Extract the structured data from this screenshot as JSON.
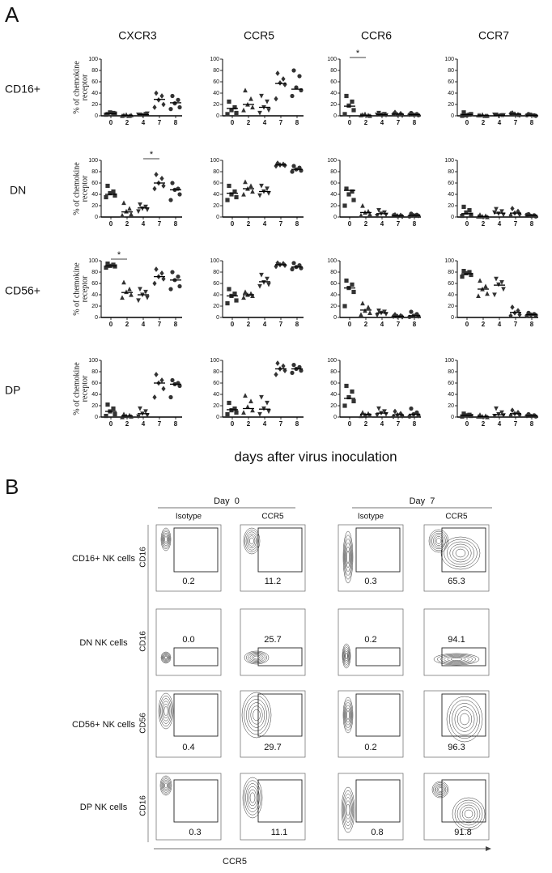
{
  "panel_a": {
    "label": "A",
    "columns": [
      "CXCR3",
      "CCR5",
      "CCR6",
      "CCR7"
    ],
    "rows": [
      "CD16+",
      "DN",
      "CD56+",
      "DP"
    ],
    "y_axis_label": [
      "% of chemokine",
      "receptor"
    ],
    "x_axis_label": "days after virus inoculation",
    "categories": [
      "0",
      "2",
      "4",
      "7",
      "8"
    ],
    "ylim": [
      0,
      100
    ],
    "yticks": [
      0,
      20,
      40,
      60,
      80,
      100
    ],
    "markers": [
      "square",
      "triangle",
      "triangle-down",
      "diamond",
      "circle"
    ],
    "color": "#333333",
    "plots": [
      [
        {
          "values": [
            [
              3,
              5,
              6,
              4,
              2
            ],
            [
              1,
              0,
              2,
              1,
              0
            ],
            [
              2,
              3,
              1,
              4,
              2
            ],
            [
              40,
              35,
              28,
              20,
              15
            ],
            [
              35,
              28,
              22,
              15,
              12
            ]
          ],
          "medians": [
            4,
            1,
            2,
            29,
            23
          ]
        },
        {
          "values": [
            [
              25,
              15,
              10,
              5,
              3
            ],
            [
              45,
              30,
              20,
              15,
              10
            ],
            [
              35,
              25,
              15,
              10,
              5
            ],
            [
              75,
              65,
              58,
              55,
              30
            ],
            [
              80,
              70,
              50,
              45,
              35
            ]
          ],
          "medians": [
            13,
            20,
            15,
            57,
            47
          ]
        },
        {
          "values": [
            [
              35,
              25,
              18,
              10,
              3
            ],
            [
              2,
              1,
              3,
              0,
              1
            ],
            [
              5,
              3,
              2,
              1,
              2
            ],
            [
              6,
              4,
              2,
              1,
              3
            ],
            [
              5,
              3,
              2,
              1,
              2
            ]
          ],
          "medians": [
            17,
            1,
            2,
            3,
            2
          ],
          "significance": {
            "from": "0",
            "to": "2",
            "label": "*"
          }
        },
        {
          "values": [
            [
              6,
              2,
              1,
              3,
              0
            ],
            [
              1,
              0,
              2,
              0,
              1
            ],
            [
              2,
              1,
              0,
              1,
              2
            ],
            [
              5,
              2,
              3,
              1,
              4
            ],
            [
              3,
              1,
              2,
              0,
              1
            ]
          ],
          "medians": [
            2,
            1,
            1,
            3,
            1
          ]
        }
      ],
      [
        {
          "values": [
            [
              55,
              45,
              42,
              38,
              35
            ],
            [
              25,
              15,
              10,
              5,
              3
            ],
            [
              22,
              18,
              15,
              13,
              10
            ],
            [
              75,
              68,
              60,
              55,
              50
            ],
            [
              60,
              50,
              48,
              40,
              30
            ]
          ],
          "medians": [
            40,
            9,
            16,
            60,
            48
          ],
          "significance": {
            "from": "4",
            "to": "7",
            "label": "*"
          }
        },
        {
          "values": [
            [
              55,
              45,
              40,
              35,
              30
            ],
            [
              62,
              55,
              50,
              45,
              40
            ],
            [
              55,
              50,
              45,
              42,
              38
            ],
            [
              95,
              93,
              92,
              91,
              90
            ],
            [
              90,
              87,
              84,
              82,
              80
            ]
          ],
          "medians": [
            42,
            50,
            45,
            92,
            84
          ]
        },
        {
          "values": [
            [
              50,
              45,
              40,
              30,
              20
            ],
            [
              20,
              10,
              8,
              5,
              3
            ],
            [
              12,
              8,
              6,
              4,
              2
            ],
            [
              4,
              3,
              2,
              1,
              3
            ],
            [
              6,
              4,
              3,
              2,
              1
            ]
          ],
          "medians": [
            47,
            8,
            6,
            2,
            3
          ]
        },
        {
          "values": [
            [
              18,
              12,
              8,
              4,
              2
            ],
            [
              4,
              2,
              1,
              0,
              1
            ],
            [
              14,
              10,
              6,
              4,
              8
            ],
            [
              15,
              10,
              7,
              5,
              3
            ],
            [
              5,
              3,
              2,
              1,
              4
            ]
          ],
          "medians": [
            6,
            1,
            7,
            7,
            3
          ]
        }
      ],
      [
        {
          "values": [
            [
              95,
              93,
              91,
              90,
              88
            ],
            [
              62,
              50,
              45,
              40,
              35
            ],
            [
              50,
              45,
              40,
              35,
              30
            ],
            [
              85,
              78,
              72,
              68,
              60
            ],
            [
              80,
              72,
              66,
              55,
              50
            ]
          ],
          "medians": [
            91,
            44,
            40,
            72,
            66
          ],
          "significance": {
            "from": "0",
            "to": "2",
            "label": "*"
          }
        },
        {
          "values": [
            [
              50,
              42,
              38,
              30,
              25
            ],
            [
              45,
              42,
              40,
              38,
              35
            ],
            [
              75,
              68,
              62,
              58,
              55
            ],
            [
              96,
              95,
              93,
              92,
              90
            ],
            [
              96,
              92,
              89,
              87,
              85
            ]
          ],
          "medians": [
            38,
            40,
            63,
            93,
            89
          ]
        },
        {
          "values": [
            [
              65,
              58,
              52,
              45,
              20
            ],
            [
              25,
              18,
              12,
              8,
              5
            ],
            [
              12,
              10,
              8,
              6,
              4
            ],
            [
              5,
              3,
              2,
              1,
              2
            ],
            [
              10,
              6,
              3,
              2,
              1
            ]
          ],
          "medians": [
            52,
            13,
            8,
            2,
            3
          ]
        },
        {
          "values": [
            [
              82,
              80,
              78,
              75,
              72
            ],
            [
              65,
              55,
              50,
              42,
              38
            ],
            [
              68,
              62,
              58,
              50,
              40
            ],
            [
              18,
              12,
              8,
              5,
              3
            ],
            [
              8,
              6,
              5,
              4,
              3
            ]
          ],
          "medians": [
            77,
            50,
            57,
            9,
            5
          ]
        }
      ],
      [
        {
          "values": [
            [
              22,
              15,
              10,
              5,
              2
            ],
            [
              5,
              3,
              2,
              1,
              0
            ],
            [
              15,
              10,
              6,
              3,
              1
            ],
            [
              75,
              65,
              60,
              50,
              35
            ],
            [
              65,
              60,
              58,
              55,
              35
            ]
          ],
          "medians": [
            10,
            2,
            6,
            60,
            58
          ]
        },
        {
          "values": [
            [
              25,
              15,
              12,
              8,
              5
            ],
            [
              38,
              28,
              18,
              12,
              8
            ],
            [
              35,
              25,
              15,
              10,
              5
            ],
            [
              95,
              90,
              85,
              82,
              75
            ],
            [
              92,
              88,
              85,
              82,
              78
            ]
          ],
          "medians": [
            13,
            15,
            14,
            85,
            85
          ]
        },
        {
          "values": [
            [
              55,
              45,
              35,
              28,
              20
            ],
            [
              8,
              6,
              4,
              3,
              2
            ],
            [
              15,
              10,
              7,
              5,
              3
            ],
            [
              10,
              6,
              4,
              2,
              1
            ],
            [
              15,
              8,
              5,
              3,
              1
            ]
          ],
          "medians": [
            33,
            5,
            7,
            4,
            5
          ]
        },
        {
          "values": [
            [
              6,
              4,
              3,
              2,
              1
            ],
            [
              4,
              2,
              1,
              0,
              1
            ],
            [
              15,
              8,
              5,
              3,
              2
            ],
            [
              12,
              8,
              6,
              4,
              3
            ],
            [
              5,
              3,
              2,
              1,
              2
            ]
          ],
          "medians": [
            3,
            1,
            4,
            6,
            2
          ]
        }
      ]
    ]
  },
  "panel_b": {
    "label": "B",
    "groups": [
      {
        "title": "Day  0",
        "columns": [
          "Isotype",
          "CCR5"
        ]
      },
      {
        "title": "Day  7",
        "columns": [
          "Isotype",
          "CCR5"
        ]
      }
    ],
    "rows": [
      {
        "name": "CD16+ NK cells",
        "y_axis": "CD16",
        "percentages": [
          "0.2",
          "11.2",
          "0.3",
          "65.3"
        ]
      },
      {
        "name": "DN NK cells",
        "y_axis": "CD16",
        "percentages": [
          "0.0",
          "25.7",
          "0.2",
          "94.1"
        ]
      },
      {
        "name": "CD56+ NK cells",
        "y_axis": "CD56",
        "percentages": [
          "0.4",
          "29.7",
          "0.2",
          "96.3"
        ]
      },
      {
        "name": "DP NK cells",
        "y_axis": "CD16",
        "percentages": [
          "0.3",
          "11.1",
          "0.8",
          "91.8"
        ]
      }
    ],
    "x_axis_label": "CCR5"
  }
}
